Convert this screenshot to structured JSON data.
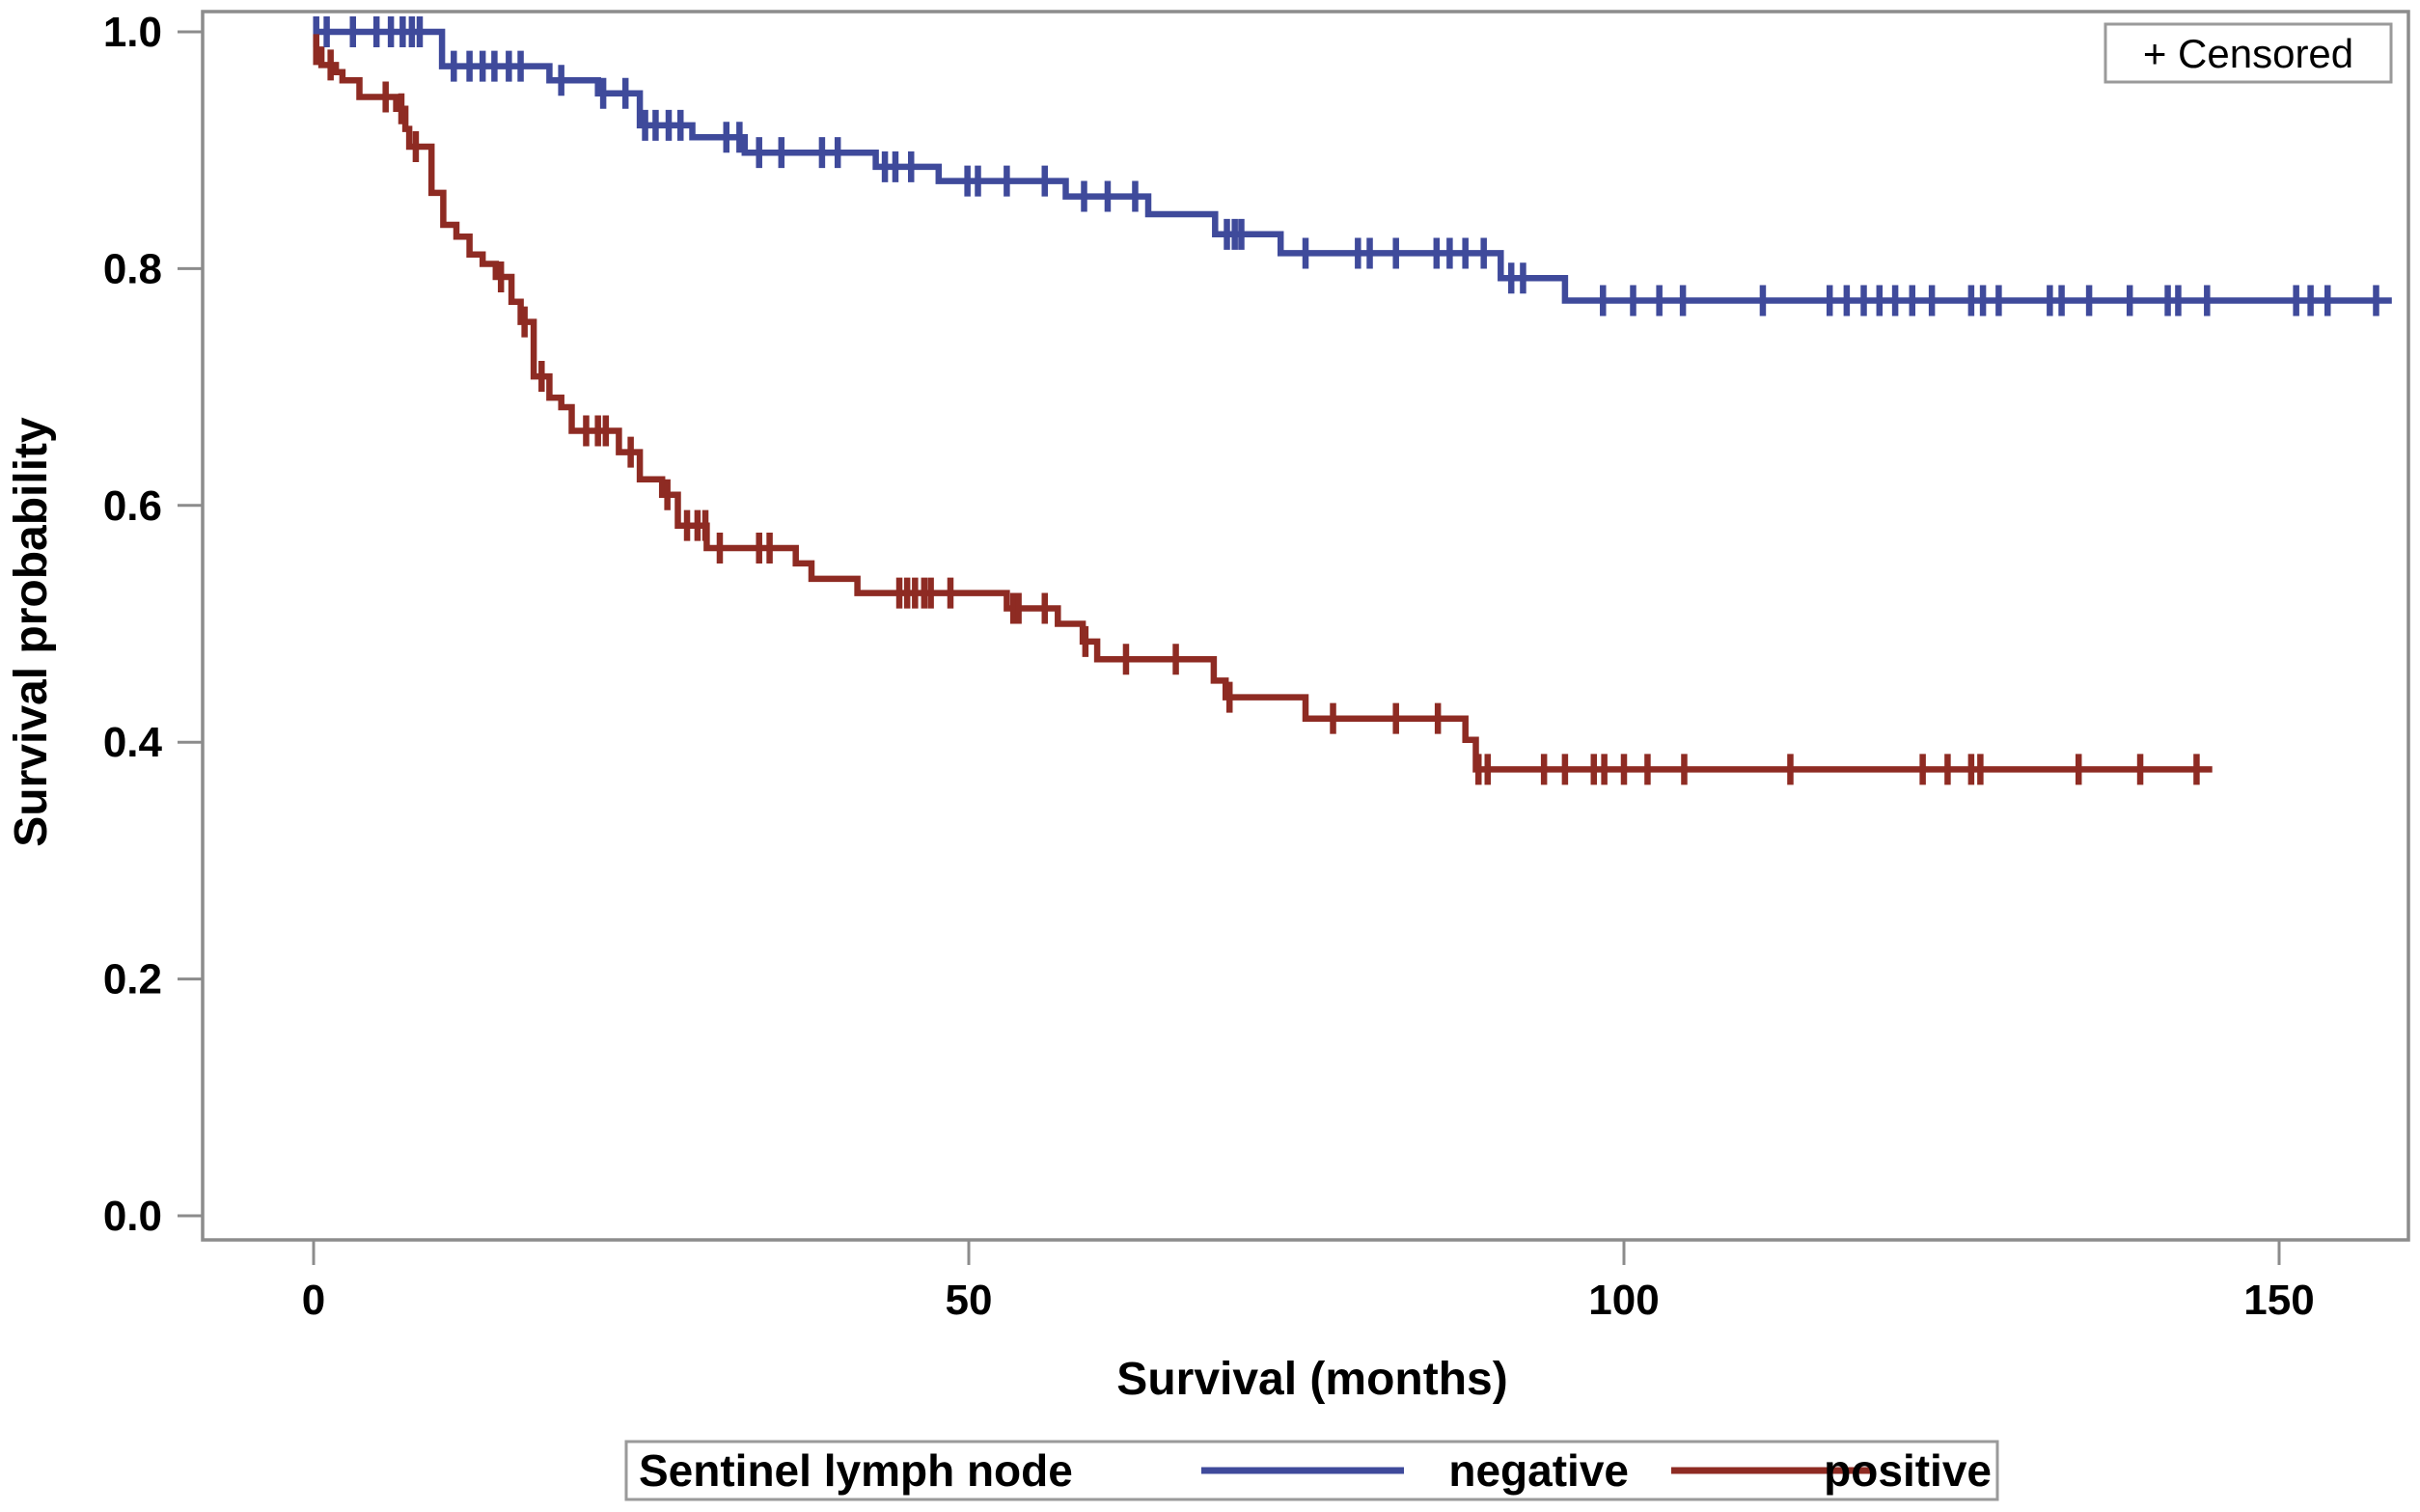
{
  "chart_data": {
    "type": "line",
    "subtype": "kaplan-meier-step",
    "title": "",
    "xlabel": "Survival (months)",
    "ylabel": "Survival probability",
    "xlim": [
      -8.5,
      160
    ],
    "ylim": [
      -0.02,
      1.017
    ],
    "x_ticks": [
      {
        "v": 0,
        "label": "0"
      },
      {
        "v": 50,
        "label": "50"
      },
      {
        "v": 100,
        "label": "100"
      },
      {
        "v": 150,
        "label": "150"
      }
    ],
    "y_ticks": [
      {
        "v": 0.0,
        "label": "0.0"
      },
      {
        "v": 0.2,
        "label": "0.2"
      },
      {
        "v": 0.4,
        "label": "0.4"
      },
      {
        "v": 0.6,
        "label": "0.6"
      },
      {
        "v": 0.8,
        "label": "0.8"
      },
      {
        "v": 1.0,
        "label": "1.0"
      }
    ],
    "grid": "off",
    "legend": {
      "censored_label": "+ Censored",
      "censored_position": "top-right",
      "group_label": "Sentinel lymph node",
      "series_labels": [
        "negative",
        "positive"
      ],
      "group_legend_position": "bottom-center"
    },
    "colors": {
      "negative": "#3f4a9b",
      "positive": "#8e2b23",
      "axis": "#8c8c8c",
      "text": "#000000",
      "background": "#ffffff"
    },
    "series": [
      {
        "name": "negative",
        "color": "#3f4a9b",
        "start": [
          0,
          1.0
        ],
        "steps": [
          [
            9.8,
            0.971
          ],
          [
            18,
            0.959
          ],
          [
            21.7,
            0.948
          ],
          [
            24.9,
            0.921
          ],
          [
            28.9,
            0.911
          ],
          [
            32.9,
            0.898
          ],
          [
            42.9,
            0.886
          ],
          [
            47.7,
            0.874
          ],
          [
            57.4,
            0.861
          ],
          [
            63.7,
            0.846
          ],
          [
            68.8,
            0.829
          ],
          [
            73.8,
            0.813
          ],
          [
            90.6,
            0.792
          ],
          [
            95.5,
            0.773
          ]
        ],
        "end_time": 158.6,
        "censors": [
          [
            0.2,
            1.0
          ],
          [
            1.0,
            1.0
          ],
          [
            3.0,
            1.0
          ],
          [
            4.8,
            1.0
          ],
          [
            5.9,
            1.0
          ],
          [
            6.8,
            1.0
          ],
          [
            7.5,
            1.0
          ],
          [
            8.1,
            1.0
          ],
          [
            10.7,
            0.971
          ],
          [
            11.9,
            0.971
          ],
          [
            12.9,
            0.971
          ],
          [
            13.8,
            0.971
          ],
          [
            14.9,
            0.971
          ],
          [
            15.8,
            0.971
          ],
          [
            18.9,
            0.959
          ],
          [
            22.1,
            0.948
          ],
          [
            23.8,
            0.948
          ],
          [
            25.3,
            0.921
          ],
          [
            26.1,
            0.921
          ],
          [
            27.1,
            0.921
          ],
          [
            28.0,
            0.921
          ],
          [
            31.5,
            0.911
          ],
          [
            32.5,
            0.911
          ],
          [
            34.0,
            0.898
          ],
          [
            35.7,
            0.898
          ],
          [
            38.8,
            0.898
          ],
          [
            40.0,
            0.898
          ],
          [
            43.6,
            0.886
          ],
          [
            44.4,
            0.886
          ],
          [
            45.6,
            0.886
          ],
          [
            49.9,
            0.874
          ],
          [
            50.7,
            0.874
          ],
          [
            52.9,
            0.874
          ],
          [
            55.8,
            0.874
          ],
          [
            58.8,
            0.861
          ],
          [
            60.6,
            0.861
          ],
          [
            62.7,
            0.861
          ],
          [
            69.7,
            0.829
          ],
          [
            70.3,
            0.829
          ],
          [
            70.8,
            0.829
          ],
          [
            75.7,
            0.813
          ],
          [
            79.7,
            0.813
          ],
          [
            80.6,
            0.813
          ],
          [
            82.6,
            0.813
          ],
          [
            85.7,
            0.813
          ],
          [
            86.7,
            0.813
          ],
          [
            87.9,
            0.813
          ],
          [
            89.3,
            0.813
          ],
          [
            91.4,
            0.792
          ],
          [
            92.3,
            0.792
          ],
          [
            98.4,
            0.773
          ],
          [
            100.7,
            0.773
          ],
          [
            102.7,
            0.773
          ],
          [
            104.5,
            0.773
          ],
          [
            110.6,
            0.773
          ],
          [
            115.7,
            0.773
          ],
          [
            117.0,
            0.773
          ],
          [
            118.3,
            0.773
          ],
          [
            119.5,
            0.773
          ],
          [
            120.7,
            0.773
          ],
          [
            122.0,
            0.773
          ],
          [
            123.5,
            0.773
          ],
          [
            126.5,
            0.773
          ],
          [
            127.4,
            0.773
          ],
          [
            128.6,
            0.773
          ],
          [
            132.5,
            0.773
          ],
          [
            133.4,
            0.773
          ],
          [
            135.5,
            0.773
          ],
          [
            138.6,
            0.773
          ],
          [
            141.5,
            0.773
          ],
          [
            142.3,
            0.773
          ],
          [
            144.5,
            0.773
          ],
          [
            151.3,
            0.773
          ],
          [
            152.4,
            0.773
          ],
          [
            153.7,
            0.773
          ],
          [
            157.4,
            0.773
          ]
        ]
      },
      {
        "name": "positive",
        "color": "#8e2b23",
        "start": [
          0,
          0.985
        ],
        "steps": [
          [
            0.6,
            0.972
          ],
          [
            1.7,
            0.966
          ],
          [
            2.2,
            0.959
          ],
          [
            3.5,
            0.945
          ],
          [
            6.3,
            0.935
          ],
          [
            7.0,
            0.918
          ],
          [
            7.3,
            0.903
          ],
          [
            9.0,
            0.864
          ],
          [
            9.9,
            0.837
          ],
          [
            10.9,
            0.827
          ],
          [
            11.9,
            0.812
          ],
          [
            12.9,
            0.804
          ],
          [
            13.9,
            0.793
          ],
          [
            15.1,
            0.772
          ],
          [
            15.8,
            0.755
          ],
          [
            16.8,
            0.709
          ],
          [
            18.0,
            0.691
          ],
          [
            18.9,
            0.683
          ],
          [
            19.7,
            0.663
          ],
          [
            23.3,
            0.645
          ],
          [
            24.9,
            0.622
          ],
          [
            26.6,
            0.609
          ],
          [
            27.8,
            0.583
          ],
          [
            30.0,
            0.564
          ],
          [
            36.8,
            0.551
          ],
          [
            38.0,
            0.538
          ],
          [
            41.5,
            0.526
          ],
          [
            52.9,
            0.513
          ],
          [
            56.8,
            0.5
          ],
          [
            58.7,
            0.485
          ],
          [
            59.8,
            0.47
          ],
          [
            68.7,
            0.452
          ],
          [
            69.6,
            0.438
          ],
          [
            75.7,
            0.42
          ],
          [
            87.9,
            0.402
          ],
          [
            88.7,
            0.377
          ]
        ],
        "end_time": 144.9,
        "censors": [
          [
            0.2,
            0.985
          ],
          [
            1.3,
            0.972
          ],
          [
            5.5,
            0.945
          ],
          [
            6.7,
            0.935
          ],
          [
            7.8,
            0.903
          ],
          [
            14.3,
            0.793
          ],
          [
            16.1,
            0.755
          ],
          [
            17.4,
            0.709
          ],
          [
            20.8,
            0.663
          ],
          [
            21.7,
            0.663
          ],
          [
            22.3,
            0.663
          ],
          [
            24.2,
            0.645
          ],
          [
            27.0,
            0.609
          ],
          [
            28.5,
            0.583
          ],
          [
            29.3,
            0.583
          ],
          [
            29.9,
            0.583
          ],
          [
            31.0,
            0.564
          ],
          [
            34.0,
            0.564
          ],
          [
            34.8,
            0.564
          ],
          [
            44.7,
            0.526
          ],
          [
            45.3,
            0.526
          ],
          [
            45.9,
            0.526
          ],
          [
            46.6,
            0.526
          ],
          [
            47.1,
            0.526
          ],
          [
            48.6,
            0.526
          ],
          [
            53.4,
            0.513
          ],
          [
            53.8,
            0.513
          ],
          [
            55.8,
            0.513
          ],
          [
            58.9,
            0.485
          ],
          [
            62.0,
            0.47
          ],
          [
            65.8,
            0.47
          ],
          [
            69.9,
            0.438
          ],
          [
            77.8,
            0.42
          ],
          [
            82.6,
            0.42
          ],
          [
            85.8,
            0.42
          ],
          [
            88.9,
            0.377
          ],
          [
            89.6,
            0.377
          ],
          [
            93.9,
            0.377
          ],
          [
            95.5,
            0.377
          ],
          [
            97.7,
            0.377
          ],
          [
            98.5,
            0.377
          ],
          [
            100.0,
            0.377
          ],
          [
            101.8,
            0.377
          ],
          [
            104.6,
            0.377
          ],
          [
            112.7,
            0.377
          ],
          [
            122.8,
            0.377
          ],
          [
            124.7,
            0.377
          ],
          [
            126.5,
            0.377
          ],
          [
            127.2,
            0.377
          ],
          [
            134.7,
            0.377
          ],
          [
            139.4,
            0.377
          ],
          [
            143.7,
            0.377
          ]
        ]
      }
    ]
  }
}
